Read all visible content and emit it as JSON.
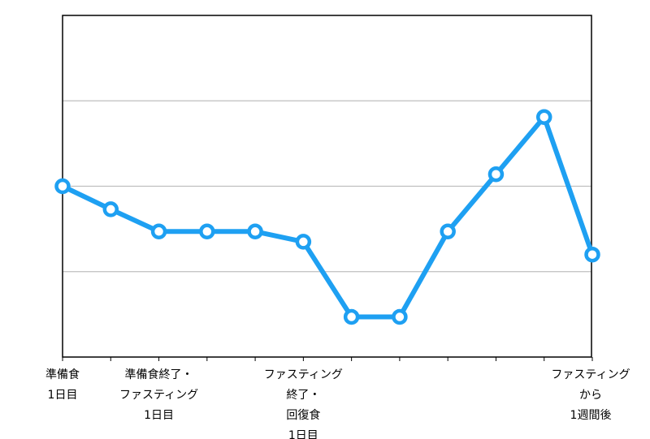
{
  "chart_data": {
    "type": "line",
    "title": "",
    "xlabel": "",
    "ylabel": "",
    "y_tick_labels_visible": false,
    "grid": true,
    "grid_levels": [
      1,
      2,
      3
    ],
    "ylim": [
      0,
      4
    ],
    "categories": [
      "準備食\n1日目",
      "",
      "準備食終了・\nファスティング\n1日目",
      "",
      "",
      "ファスティング\n終了・\n回復食\n1日目",
      "",
      "",
      "",
      "",
      "",
      "ファスティング\nから\n1週間後"
    ],
    "series": [
      {
        "color": "#1ea0f2",
        "values": [
          2.0,
          1.73,
          1.47,
          1.47,
          1.47,
          1.35,
          0.47,
          0.47,
          1.47,
          2.14,
          2.81,
          1.2
        ]
      }
    ]
  }
}
